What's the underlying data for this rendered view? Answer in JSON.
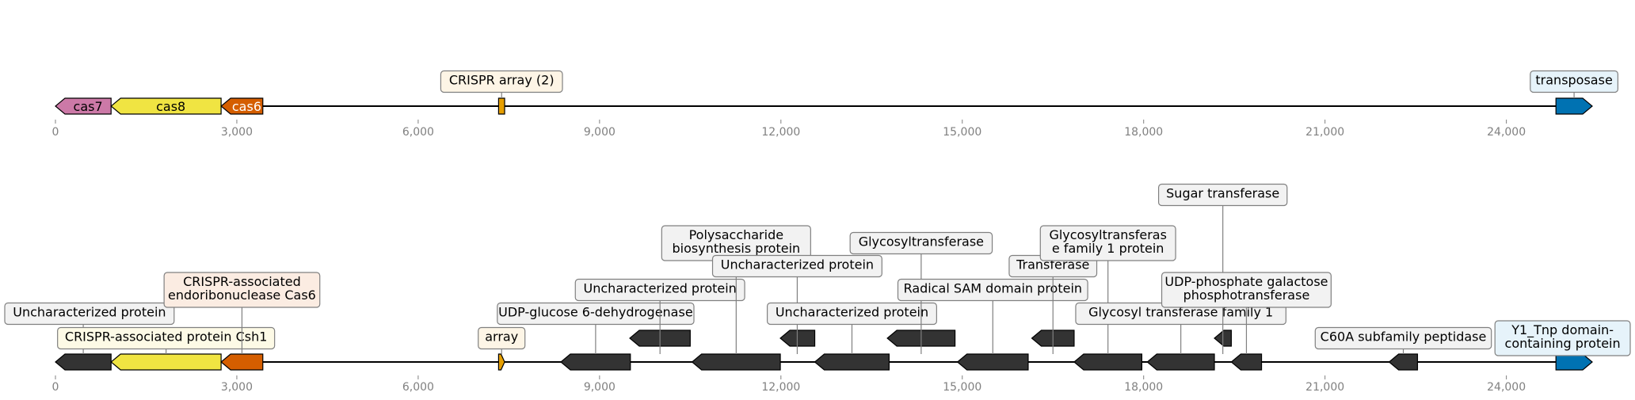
{
  "colors": {
    "cas7": "#CC79A7",
    "cas8": "#F0E442",
    "cas6": "#D55E00",
    "crispr_array": "#E69F00",
    "transposase": "#0072B2",
    "other": "#333333",
    "backbone": "#000000",
    "tick": "#808080"
  },
  "tracks": [
    {
      "id": "overview",
      "ticks": [
        "0",
        "3,000",
        "6,000",
        "9,000",
        "12,000",
        "15,000",
        "18,000",
        "21,000",
        "24,000"
      ],
      "features": [
        {
          "name": "cas7",
          "label": "cas7",
          "start": 0,
          "end": 920,
          "strand": -1,
          "color": "cas7"
        },
        {
          "name": "cas8",
          "label": "cas8",
          "start": 920,
          "end": 2740,
          "strand": -1,
          "color": "cas8"
        },
        {
          "name": "cas6",
          "label": "cas6",
          "start": 2740,
          "end": 3430,
          "strand": -1,
          "color": "cas6"
        },
        {
          "name": "crispr-array",
          "start": 7330,
          "end": 7430,
          "strand": 0,
          "color": "crispr_array"
        },
        {
          "name": "transposase",
          "start": 24820,
          "end": 25420,
          "strand": 1,
          "color": "transposase"
        }
      ],
      "callouts": [
        {
          "lines": [
            "CRISPR array (2)"
          ],
          "at": 7380,
          "level": 0,
          "bg": "#fdf5e6"
        },
        {
          "lines": [
            "transposase"
          ],
          "at": 25120,
          "level": 0,
          "bg": "#e6f3fa"
        }
      ]
    },
    {
      "id": "detail",
      "ticks": [
        "0",
        "3,000",
        "6,000",
        "9,000",
        "12,000",
        "15,000",
        "18,000",
        "21,000",
        "24,000"
      ],
      "features": [
        {
          "name": "cas7",
          "start": 0,
          "end": 920,
          "strand": -1,
          "color": "other"
        },
        {
          "name": "cas8",
          "start": 920,
          "end": 2740,
          "strand": -1,
          "color": "cas8"
        },
        {
          "name": "cas6",
          "start": 2740,
          "end": 3430,
          "strand": -1,
          "color": "cas6"
        },
        {
          "name": "crispr-array",
          "start": 7330,
          "end": 7430,
          "strand": 1,
          "color": "crispr_array"
        },
        {
          "name": "udp-glucose-dh",
          "start": 8360,
          "end": 9510,
          "strand": -1,
          "color": "other"
        },
        {
          "name": "uncharacterized-a",
          "start": 9500,
          "end": 10500,
          "strand": -1,
          "color": "other",
          "row": 1
        },
        {
          "name": "polysaccharide-biosynthesis",
          "start": 10530,
          "end": 11990,
          "strand": -1,
          "color": "other"
        },
        {
          "name": "uncharacterized-b",
          "start": 11990,
          "end": 12560,
          "strand": -1,
          "color": "other",
          "row": 1
        },
        {
          "name": "uncharacterized-c",
          "start": 12560,
          "end": 13790,
          "strand": -1,
          "color": "other"
        },
        {
          "name": "glycosyltransferase",
          "start": 13760,
          "end": 14880,
          "strand": -1,
          "color": "other",
          "row": 1
        },
        {
          "name": "radical-sam",
          "start": 14920,
          "end": 16090,
          "strand": -1,
          "color": "other"
        },
        {
          "name": "transferase",
          "start": 16150,
          "end": 16850,
          "strand": -1,
          "color": "other",
          "row": 1
        },
        {
          "name": "glycosyltransferase-family-1",
          "start": 16850,
          "end": 17970,
          "strand": -1,
          "color": "other"
        },
        {
          "name": "glycosyl-transferase-family-1",
          "start": 18060,
          "end": 19170,
          "strand": -1,
          "color": "other"
        },
        {
          "name": "sugar-transferase",
          "start": 19170,
          "end": 19450,
          "strand": -1,
          "color": "other",
          "row": 1
        },
        {
          "name": "udp-phosphate-galactose",
          "start": 19450,
          "end": 19950,
          "strand": -1,
          "color": "other"
        },
        {
          "name": "c60a-peptidase",
          "start": 22060,
          "end": 22530,
          "strand": -1,
          "color": "other"
        },
        {
          "name": "y1-tnp",
          "start": 24820,
          "end": 25420,
          "strand": 1,
          "color": "transposase"
        }
      ],
      "callouts": [
        {
          "lines": [
            "Uncharacterized protein"
          ],
          "at": 460,
          "level": 2,
          "bg": "#f2f2f2"
        },
        {
          "lines": [
            "CRISPR-associated protein Csh1"
          ],
          "at": 1830,
          "level": 1,
          "bg": "#fdfae6"
        },
        {
          "lines": [
            "CRISPR-associated",
            "endoribonuclease Cas6"
          ],
          "at": 3085,
          "level": 3,
          "bg": "#fbece2"
        },
        {
          "lines": [
            "array"
          ],
          "at": 7380,
          "level": 1,
          "bg": "#fdf5e6"
        },
        {
          "lines": [
            "UDP-glucose 6-dehydrogenase"
          ],
          "at": 8935,
          "level": 2,
          "bg": "#f2f2f2"
        },
        {
          "lines": [
            "Uncharacterized protein"
          ],
          "at": 10000,
          "level": 3,
          "bg": "#f2f2f2"
        },
        {
          "lines": [
            "Polysaccharide",
            "biosynthesis protein"
          ],
          "at": 11260,
          "level": 5,
          "bg": "#f2f2f2"
        },
        {
          "lines": [
            "Uncharacterized protein"
          ],
          "at": 12270,
          "level": 4,
          "bg": "#f2f2f2"
        },
        {
          "lines": [
            "Uncharacterized protein"
          ],
          "at": 13175,
          "level": 2,
          "bg": "#f2f2f2"
        },
        {
          "lines": [
            "Glycosyltransferase"
          ],
          "at": 14320,
          "level": 5,
          "bg": "#f2f2f2"
        },
        {
          "lines": [
            "Radical SAM domain protein"
          ],
          "at": 15505,
          "level": 3,
          "bg": "#f2f2f2"
        },
        {
          "lines": [
            "Transferase"
          ],
          "at": 16500,
          "level": 4,
          "bg": "#f2f2f2"
        },
        {
          "lines": [
            "Glycosyltransferas",
            "e family 1 protein"
          ],
          "at": 17410,
          "level": 5,
          "bg": "#f2f2f2"
        },
        {
          "lines": [
            "Glycosyl transferase family 1"
          ],
          "at": 18615,
          "level": 2,
          "bg": "#f2f2f2"
        },
        {
          "lines": [
            "Sugar transferase"
          ],
          "at": 19310,
          "level": 7,
          "bg": "#f2f2f2"
        },
        {
          "lines": [
            "UDP-phosphate galactose",
            "phosphotransferase"
          ],
          "at": 19700,
          "level": 3,
          "bg": "#f2f2f2"
        },
        {
          "lines": [
            "C60A subfamily peptidase"
          ],
          "at": 22295,
          "level": 1,
          "bg": "#f2f2f2"
        },
        {
          "lines": [
            "Y1_Tnp domain-",
            "containing protein"
          ],
          "at": 25120,
          "level": 1,
          "bg": "#e6f3fa"
        }
      ]
    }
  ]
}
